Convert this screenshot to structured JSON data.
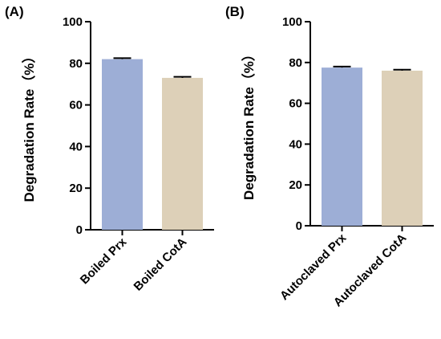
{
  "chart_data": [
    {
      "type": "bar",
      "panel_label": "(A)",
      "categories": [
        "Boiled Prx",
        "Boiled CotA"
      ],
      "values": [
        82,
        73
      ],
      "errors": [
        0.5,
        0.5
      ],
      "colors": [
        "#9daed6",
        "#ddd0b8"
      ],
      "ylabel": "Degradation Rate（%）",
      "ylim": [
        0,
        100
      ],
      "yticks": [
        0,
        20,
        40,
        60,
        80,
        100
      ],
      "grid": false
    },
    {
      "type": "bar",
      "panel_label": "(B)",
      "categories": [
        "Autoclaved Prx",
        "Autoclaved CotA"
      ],
      "values": [
        77.5,
        76
      ],
      "errors": [
        0.5,
        0.5
      ],
      "colors": [
        "#9daed6",
        "#ddd0b8"
      ],
      "ylabel": "Degradation Rate（%）",
      "ylim": [
        0,
        100
      ],
      "yticks": [
        0,
        20,
        40,
        60,
        80,
        100
      ],
      "grid": false
    }
  ]
}
